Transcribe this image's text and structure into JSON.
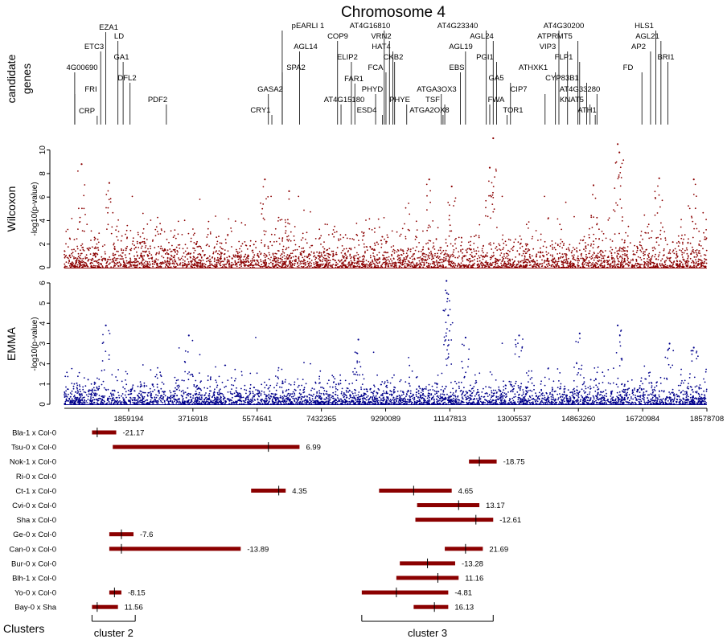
{
  "figure": {
    "title": "Chromosome 4",
    "row_labels": {
      "genes": [
        "candidate",
        "genes"
      ],
      "wilcoxon": "Wilcoxon",
      "emma": "EMMA",
      "clusters": "Clusters"
    },
    "ylabel": "-log10(p-value)"
  },
  "colors": {
    "wilcoxon": "#8b0000",
    "emma": "#00008b",
    "qtl_bar": "#8b0000"
  },
  "chart_data": [
    {
      "type": "table",
      "name": "candidate-genes",
      "genes": [
        {
          "label": "EZA1",
          "pos": 1200000
        },
        {
          "label": "LD",
          "pos": 1550000
        },
        {
          "label": "ETC3",
          "pos": 1050000
        },
        {
          "label": "GA1",
          "pos": 1700000
        },
        {
          "label": "4G00690",
          "pos": 300000
        },
        {
          "label": "DFL2",
          "pos": 1900000
        },
        {
          "label": "FRI",
          "pos": 300000
        },
        {
          "label": "PDF2",
          "pos": 2950000
        },
        {
          "label": "CRP",
          "pos": 950000
        },
        {
          "label": "pEARLI 1",
          "pos": 6300000
        },
        {
          "label": "AGL14",
          "pos": 6800000
        },
        {
          "label": "SPA2",
          "pos": 6300000
        },
        {
          "label": "GASA2",
          "pos": 5900000
        },
        {
          "label": "CRY1",
          "pos": 6000000
        },
        {
          "label": "COP9",
          "pos": 7900000
        },
        {
          "label": "ELIP2",
          "pos": 8300000
        },
        {
          "label": "FAR1",
          "pos": 8400000
        },
        {
          "label": "AT4G15180",
          "pos": 8000000
        },
        {
          "label": "AT4G16810",
          "pos": 9250000
        },
        {
          "label": "VRN2",
          "pos": 9400000
        },
        {
          "label": "HAT4",
          "pos": 9500000
        },
        {
          "label": "CKB2",
          "pos": 9550000
        },
        {
          "label": "FCA",
          "pos": 9300000
        },
        {
          "label": "PHYD",
          "pos": 9000000
        },
        {
          "label": "PHYE",
          "pos": 9900000
        },
        {
          "label": "ESD4",
          "pos": 9200000
        },
        {
          "label": "AT4G23340",
          "pos": 12200000
        },
        {
          "label": "AGL24",
          "pos": 12400000
        },
        {
          "label": "AGL19",
          "pos": 11600000
        },
        {
          "label": "EBS",
          "pos": 11450000
        },
        {
          "label": "ATGA3OX3",
          "pos": 10900000
        },
        {
          "label": "TSF",
          "pos": 11000000
        },
        {
          "label": "ATGA2OX8",
          "pos": 10950000
        },
        {
          "label": "PGI1",
          "pos": 12500000
        },
        {
          "label": "GA5",
          "pos": 12900000
        },
        {
          "label": "FWA",
          "pos": 12300000
        },
        {
          "label": "TOR1",
          "pos": 12800000
        },
        {
          "label": "AT4G30200",
          "pos": 14300000
        },
        {
          "label": "ATPRMT5",
          "pos": 14850000
        },
        {
          "label": "VIP3",
          "pos": 14550000
        },
        {
          "label": "FLP1",
          "pos": 14900000
        },
        {
          "label": "ATHXK1",
          "pos": 14200000
        },
        {
          "label": "CYP83B1",
          "pos": 15100000
        },
        {
          "label": "CIP7",
          "pos": 13900000
        },
        {
          "label": "AT4G33280",
          "pos": 15400000
        },
        {
          "label": "KNAT5",
          "pos": 15200000
        },
        {
          "label": "ATH1",
          "pos": 15350000
        },
        {
          "label": "HLS1",
          "pos": 17100000
        },
        {
          "label": "AGL21",
          "pos": 17250000
        },
        {
          "label": "AP2",
          "pos": 16950000
        },
        {
          "label": "BRI1",
          "pos": 17450000
        },
        {
          "label": "FD",
          "pos": 16700000
        }
      ]
    },
    {
      "type": "scatter",
      "name": "wilcoxon",
      "ylabel": "-log10(p-value)",
      "xlim": [
        0,
        18578708
      ],
      "ylim": [
        0,
        11
      ],
      "yticks": [
        0,
        2,
        4,
        6,
        8,
        10
      ],
      "peaks": [
        {
          "x": 500000,
          "y": 8.8
        },
        {
          "x": 1300000,
          "y": 7.2
        },
        {
          "x": 5800000,
          "y": 7.5
        },
        {
          "x": 6500000,
          "y": 6.5
        },
        {
          "x": 10550000,
          "y": 7.5
        },
        {
          "x": 11200000,
          "y": 6.9
        },
        {
          "x": 12400000,
          "y": 11.0
        },
        {
          "x": 12300000,
          "y": 8.5
        },
        {
          "x": 15300000,
          "y": 7.0
        },
        {
          "x": 16000000,
          "y": 10.5
        },
        {
          "x": 16050000,
          "y": 9.8
        },
        {
          "x": 17200000,
          "y": 7.6
        },
        {
          "x": 18200000,
          "y": 7.5
        }
      ]
    },
    {
      "type": "scatter",
      "name": "emma",
      "ylabel": "-log10(p-value)",
      "xlim": [
        0,
        18578708
      ],
      "ylim": [
        0,
        6
      ],
      "yticks": [
        0,
        1,
        2,
        3,
        4,
        5,
        6
      ],
      "xticks": [
        1859194,
        3716918,
        5574641,
        7432365,
        9290089,
        11147813,
        13005537,
        14863260,
        16720984,
        18578708
      ],
      "peaks": [
        {
          "x": 1200000,
          "y": 3.9
        },
        {
          "x": 3600000,
          "y": 3.4
        },
        {
          "x": 8500000,
          "y": 3.2
        },
        {
          "x": 11050000,
          "y": 6.1
        },
        {
          "x": 11060000,
          "y": 5.5
        },
        {
          "x": 11100000,
          "y": 4.4
        },
        {
          "x": 11600000,
          "y": 3.3
        },
        {
          "x": 13150000,
          "y": 3.4
        },
        {
          "x": 14900000,
          "y": 3.5
        },
        {
          "x": 16000000,
          "y": 3.9
        },
        {
          "x": 17500000,
          "y": 3.0
        },
        {
          "x": 18200000,
          "y": 2.8
        }
      ]
    },
    {
      "type": "bar",
      "name": "qtl-intervals",
      "crosses": [
        {
          "label": "Bla-1 x Col-0",
          "start": 800000,
          "end": 1500000,
          "peak": 950000,
          "value": "-21.17"
        },
        {
          "label": "Tsu-0 x Col-0",
          "start": 1400000,
          "end": 6800000,
          "peak": 5900000,
          "value": "6.99"
        },
        {
          "label": "Nok-1 x Col-0",
          "start": 11700000,
          "end": 12500000,
          "peak": 12000000,
          "value": "-18.75"
        },
        {
          "label": "Ri-0 x Col-0",
          "start": null,
          "end": null,
          "peak": null,
          "value": ""
        },
        {
          "label": "Ct-1 x Col-0",
          "start": 5400000,
          "end": 6400000,
          "peak": 6200000,
          "value": "4.35"
        },
        {
          "label": "Ct-1 x Col-0",
          "start": 9100000,
          "end": 11200000,
          "peak": 10100000,
          "value": "4.65"
        },
        {
          "label": "Cvi-0 x Col-0",
          "start": 10200000,
          "end": 12000000,
          "peak": 11400000,
          "value": "13.17"
        },
        {
          "label": "Sha x Col-0",
          "start": 10150000,
          "end": 12400000,
          "peak": 11900000,
          "value": "-12.61"
        },
        {
          "label": "Ge-0 x Col-0",
          "start": 1300000,
          "end": 2000000,
          "peak": 1650000,
          "value": "-7.6"
        },
        {
          "label": "Can-0 x Col-0",
          "start": 1300000,
          "end": 5100000,
          "peak": 1650000,
          "value": "-13.89"
        },
        {
          "label": "Can-0 x Col-0",
          "start": 11000000,
          "end": 12100000,
          "peak": 11600000,
          "value": "21.69"
        },
        {
          "label": "Bur-0 x Col-0",
          "start": 9700000,
          "end": 11300000,
          "peak": 10500000,
          "value": "-13.28"
        },
        {
          "label": "Blh-1 x Col-0",
          "start": 9600000,
          "end": 11400000,
          "peak": 10800000,
          "value": "11.16"
        },
        {
          "label": "Yo-0 x Col-0",
          "start": 1300000,
          "end": 1650000,
          "peak": 1450000,
          "value": "-8.15"
        },
        {
          "label": "Yo-0 x Col-0",
          "start": 8600000,
          "end": 11100000,
          "peak": 9600000,
          "value": "-4.81"
        },
        {
          "label": "Bay-0 x Sha",
          "start": 800000,
          "end": 1550000,
          "peak": 950000,
          "value": "11.56"
        },
        {
          "label": "Bay-0 x Sha",
          "start": 10100000,
          "end": 11100000,
          "peak": 10700000,
          "value": "16.13"
        }
      ],
      "clusters": [
        {
          "label": "cluster 2",
          "start": 800000,
          "end": 2050000
        },
        {
          "label": "cluster 3",
          "start": 8600000,
          "end": 12400000
        }
      ]
    }
  ]
}
